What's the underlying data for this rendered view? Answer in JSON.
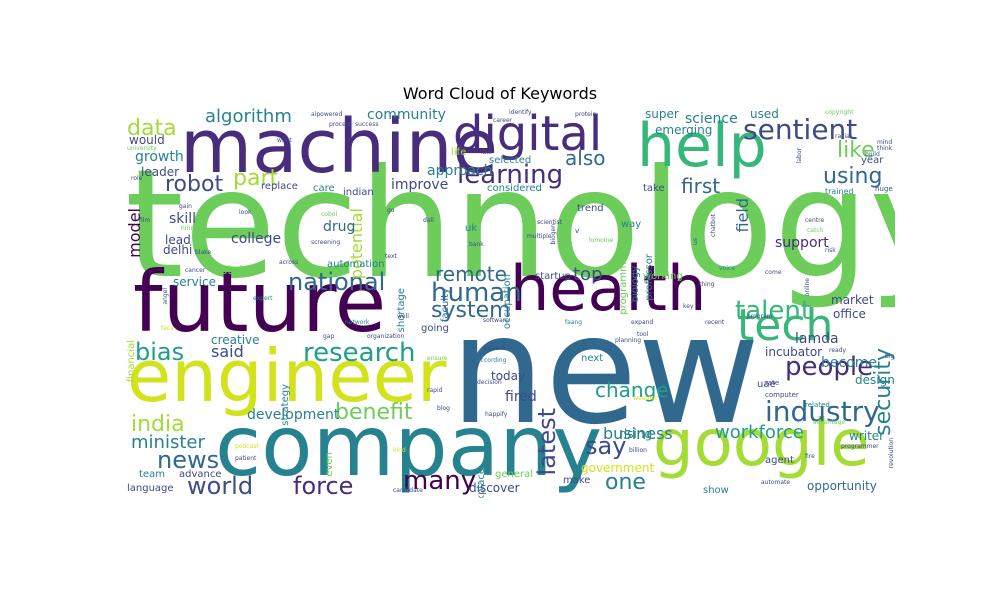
{
  "chart_data": {
    "type": "wordcloud",
    "title": "Word Cloud of Keywords",
    "background": "#ffffff",
    "colormap": "viridis",
    "colors": {
      "yellow": "#d2e21b",
      "lime": "#a5db36",
      "green": "#6ccd5a",
      "emerald": "#35b779",
      "teal": "#1f9e89",
      "blue": "#26828e",
      "steel": "#31688e",
      "indigo": "#3e4a89",
      "violet": "#472d7b",
      "dark": "#440154"
    },
    "words": [
      {
        "text": "technology",
        "weight": 100,
        "color": "#6ccd5a"
      },
      {
        "text": "new",
        "weight": 96,
        "color": "#31688e"
      },
      {
        "text": "company",
        "weight": 72,
        "color": "#26828e"
      },
      {
        "text": "future",
        "weight": 62,
        "color": "#440154"
      },
      {
        "text": "engineer",
        "weight": 57,
        "color": "#d2e21b"
      },
      {
        "text": "machine",
        "weight": 55,
        "color": "#472d7b"
      },
      {
        "text": "health",
        "weight": 52,
        "color": "#440154"
      },
      {
        "text": "google",
        "weight": 52,
        "color": "#a5db36"
      },
      {
        "text": "help",
        "weight": 48,
        "color": "#35b779"
      },
      {
        "text": "digital",
        "weight": 40,
        "color": "#472d7b"
      },
      {
        "text": "tech",
        "weight": 36,
        "color": "#35b779"
      },
      {
        "text": "sentient",
        "weight": 22,
        "color": "#3e4a89"
      },
      {
        "text": "people",
        "weight": 21,
        "color": "#472d7b"
      },
      {
        "text": "industry",
        "weight": 21,
        "color": "#31688e"
      },
      {
        "text": "research",
        "weight": 20,
        "color": "#1f9e89"
      },
      {
        "text": "learning",
        "weight": 20,
        "color": "#472d7b"
      },
      {
        "text": "talent",
        "weight": 20,
        "color": "#35b779"
      },
      {
        "text": "human",
        "weight": 20,
        "color": "#31688e"
      },
      {
        "text": "national",
        "weight": 19,
        "color": "#31688e"
      },
      {
        "text": "world",
        "weight": 19,
        "color": "#3e4a89"
      },
      {
        "text": "force",
        "weight": 19,
        "color": "#472d7b"
      },
      {
        "text": "many",
        "weight": 19,
        "color": "#440154"
      },
      {
        "text": "bias",
        "weight": 19,
        "color": "#1f9e89"
      },
      {
        "text": "news",
        "weight": 19,
        "color": "#31688e"
      },
      {
        "text": "latest",
        "weight": 18,
        "color": "#3e4a89"
      },
      {
        "text": "security",
        "weight": 18,
        "color": "#26828e"
      },
      {
        "text": "data",
        "weight": 18,
        "color": "#a5db36"
      },
      {
        "text": "robot",
        "weight": 17,
        "color": "#3e4a89"
      },
      {
        "text": "part",
        "weight": 17,
        "color": "#a5db36"
      },
      {
        "text": "using",
        "weight": 17,
        "color": "#31688e"
      },
      {
        "text": "like",
        "weight": 17,
        "color": "#6ccd5a"
      },
      {
        "text": "say",
        "weight": 17,
        "color": "#3e4a89"
      },
      {
        "text": "one",
        "weight": 17,
        "color": "#26828e"
      },
      {
        "text": "system",
        "weight": 17,
        "color": "#31688e"
      },
      {
        "text": "india",
        "weight": 17,
        "color": "#a5db36"
      },
      {
        "text": "benefit",
        "weight": 16,
        "color": "#6ccd5a"
      },
      {
        "text": "remote",
        "weight": 16,
        "color": "#31688e"
      },
      {
        "text": "change",
        "weight": 15,
        "color": "#1f9e89"
      },
      {
        "text": "first",
        "weight": 15,
        "color": "#31688e"
      },
      {
        "text": "also",
        "weight": 15,
        "color": "#31688e"
      },
      {
        "text": "workforce",
        "weight": 14,
        "color": "#1f9e89"
      },
      {
        "text": "algorithm",
        "weight": 14,
        "color": "#26828e"
      },
      {
        "text": "minister",
        "weight": 14,
        "color": "#26828e"
      },
      {
        "text": "business",
        "weight": 14,
        "color": "#26828e"
      },
      {
        "text": "top",
        "weight": 14,
        "color": "#3e4a89"
      },
      {
        "text": "field",
        "weight": 13,
        "color": "#31688e"
      },
      {
        "text": "model",
        "weight": 13,
        "color": "#440154"
      },
      {
        "text": "potential",
        "weight": 13,
        "color": "#a5db36"
      },
      {
        "text": "said",
        "weight": 13,
        "color": "#3e4a89"
      },
      {
        "text": "fired",
        "weight": 12,
        "color": "#3e4a89"
      },
      {
        "text": "support",
        "weight": 12,
        "color": "#472d7b"
      },
      {
        "text": "community",
        "weight": 12,
        "color": "#26828e"
      },
      {
        "text": "science",
        "weight": 11,
        "color": "#26828e"
      },
      {
        "text": "skill",
        "weight": 11,
        "color": "#3e4a89"
      },
      {
        "text": "growth",
        "weight": 11,
        "color": "#26828e"
      },
      {
        "text": "lamda",
        "weight": 11,
        "color": "#3e4a89"
      },
      {
        "text": "become",
        "weight": 11,
        "color": "#26828e"
      },
      {
        "text": "improve",
        "weight": 11,
        "color": "#3e4a89"
      },
      {
        "text": "approach",
        "weight": 11,
        "color": "#26828e"
      },
      {
        "text": "development",
        "weight": 11,
        "color": "#26828e"
      },
      {
        "text": "creative",
        "weight": 11,
        "color": "#26828e"
      },
      {
        "text": "college",
        "weight": 11,
        "color": "#3e4a89"
      },
      {
        "text": "drug",
        "weight": 11,
        "color": "#31688e"
      },
      {
        "text": "government",
        "weight": 11,
        "color": "#d2e21b"
      },
      {
        "text": "incubator",
        "weight": 11,
        "color": "#3e4a89"
      },
      {
        "text": "opportunity",
        "weight": 10,
        "color": "#31688e"
      },
      {
        "text": "discover",
        "weight": 10,
        "color": "#3e4a89"
      },
      {
        "text": "emerging",
        "weight": 10,
        "color": "#26828e"
      },
      {
        "text": "used",
        "weight": 10,
        "color": "#26828e"
      },
      {
        "text": "super",
        "weight": 10,
        "color": "#26828e"
      },
      {
        "text": "would",
        "weight": 10,
        "color": "#3e4a89"
      },
      {
        "text": "leader",
        "weight": 10,
        "color": "#3e4a89"
      },
      {
        "text": "service",
        "weight": 10,
        "color": "#26828e"
      },
      {
        "text": "state",
        "weight": 10,
        "color": "#6ccd5a"
      },
      {
        "text": "delhi",
        "weight": 10,
        "color": "#3e4a89"
      },
      {
        "text": "lead",
        "weight": 10,
        "color": "#3e4a89"
      },
      {
        "text": "market",
        "weight": 10,
        "color": "#3e4a89"
      },
      {
        "text": "office",
        "weight": 10,
        "color": "#3e4a89"
      },
      {
        "text": "design",
        "weight": 10,
        "color": "#26828e"
      },
      {
        "text": "writer",
        "weight": 10,
        "color": "#26828e"
      },
      {
        "text": "working",
        "weight": 9,
        "color": "#6ccd5a"
      },
      {
        "text": "today",
        "weight": 10,
        "color": "#3e4a89"
      },
      {
        "text": "rising",
        "weight": 10,
        "color": "#26828e"
      },
      {
        "text": "general",
        "weight": 9,
        "color": "#6ccd5a"
      },
      {
        "text": "make",
        "weight": 9,
        "color": "#3e4a89"
      },
      {
        "text": "show",
        "weight": 9,
        "color": "#26828e"
      },
      {
        "text": "team",
        "weight": 9,
        "color": "#26828e"
      },
      {
        "text": "language",
        "weight": 9,
        "color": "#3e4a89"
      },
      {
        "text": "advance",
        "weight": 9,
        "color": "#3e4a89"
      },
      {
        "text": "agent",
        "weight": 8,
        "color": "#3e4a89"
      },
      {
        "text": "year",
        "weight": 9,
        "color": "#3e4a89"
      },
      {
        "text": "life",
        "weight": 9,
        "color": "#a5db36"
      },
      {
        "text": "selected",
        "weight": 9,
        "color": "#26828e"
      },
      {
        "text": "considered",
        "weight": 9,
        "color": "#26828e"
      },
      {
        "text": "replace",
        "weight": 9,
        "color": "#3e4a89"
      },
      {
        "text": "care",
        "weight": 9,
        "color": "#26828e"
      },
      {
        "text": "automation",
        "weight": 9,
        "color": "#26828e"
      },
      {
        "text": "indian",
        "weight": 9,
        "color": "#3e4a89"
      },
      {
        "text": "startup",
        "weight": 9,
        "color": "#3e4a89"
      },
      {
        "text": "take",
        "weight": 9,
        "color": "#3e4a89"
      },
      {
        "text": "trend",
        "weight": 9,
        "color": "#3e4a89"
      },
      {
        "text": "way",
        "weight": 9,
        "color": "#26828e"
      },
      {
        "text": "uk",
        "weight": 9,
        "color": "#26828e"
      },
      {
        "text": "next",
        "weight": 9,
        "color": "#26828e"
      },
      {
        "text": "uae",
        "weight": 9,
        "color": "#3e4a89"
      },
      {
        "text": "going",
        "weight": 9,
        "color": "#3e4a89"
      },
      {
        "text": "financial",
        "weight": 8,
        "color": "#a5db36"
      },
      {
        "text": "strategy",
        "weight": 8,
        "color": "#26828e"
      },
      {
        "text": "shortage",
        "weight": 8,
        "color": "#26828e"
      },
      {
        "text": "faculty",
        "weight": 8,
        "color": "#31688e"
      },
      {
        "text": "occupation",
        "weight": 8,
        "color": "#26828e"
      },
      {
        "text": "biology",
        "weight": 8,
        "color": "#26828e"
      },
      {
        "text": "professor",
        "weight": 8,
        "color": "#26828e"
      },
      {
        "text": "programme",
        "weight": 8,
        "color": "#6ccd5a"
      },
      {
        "text": "workplace",
        "weight": 8,
        "color": "#26828e"
      },
      {
        "text": "even",
        "weight": 8,
        "color": "#6ccd5a"
      },
      {
        "text": "computer",
        "weight": 6,
        "color": "#3e4a89"
      },
      {
        "text": "rate",
        "weight": 6,
        "color": "#3e4a89"
      },
      {
        "text": "related",
        "weight": 6,
        "color": "#26828e"
      },
      {
        "text": "trained",
        "weight": 7,
        "color": "#26828e"
      },
      {
        "text": "huge",
        "weight": 6,
        "color": "#3e4a89"
      },
      {
        "text": "think",
        "weight": 6,
        "color": "#3e4a89"
      },
      {
        "text": "build",
        "weight": 6,
        "color": "#3e4a89"
      },
      {
        "text": "mind",
        "weight": 6,
        "color": "#3e4a89"
      },
      {
        "text": "racial",
        "weight": 5,
        "color": "#3e4a89"
      },
      {
        "text": "copyright",
        "weight": 5,
        "color": "#6ccd5a"
      },
      {
        "text": "identify",
        "weight": 5,
        "color": "#3e4a89"
      },
      {
        "text": "protein",
        "weight": 5,
        "color": "#3e4a89"
      },
      {
        "text": "career",
        "weight": 5,
        "color": "#3e4a89"
      },
      {
        "text": "aipowered",
        "weight": 5,
        "color": "#3e4a89"
      },
      {
        "text": "process",
        "weight": 5,
        "color": "#3e4a89"
      },
      {
        "text": "success",
        "weight": 5,
        "color": "#3e4a89"
      },
      {
        "text": "want",
        "weight": 5,
        "color": "#3e4a89"
      },
      {
        "text": "law",
        "weight": 5,
        "color": "#3e4a89"
      },
      {
        "text": "university",
        "weight": 5,
        "color": "#6ccd5a"
      },
      {
        "text": "role",
        "weight": 5,
        "color": "#3e4a89"
      },
      {
        "text": "film",
        "weight": 5,
        "color": "#3e4a89"
      },
      {
        "text": "gain",
        "weight": 5,
        "color": "#3e4a89"
      },
      {
        "text": "hiring",
        "weight": 5,
        "color": "#6ccd5a"
      },
      {
        "text": "blake",
        "weight": 5,
        "color": "#3e4a89"
      },
      {
        "text": "cancer",
        "weight": 5,
        "color": "#3e4a89"
      },
      {
        "text": "look",
        "weight": 5,
        "color": "#3e4a89"
      },
      {
        "text": "cobol",
        "weight": 5,
        "color": "#6ccd5a"
      },
      {
        "text": "screening",
        "weight": 5,
        "color": "#3e4a89"
      },
      {
        "text": "gap",
        "weight": 5,
        "color": "#3e4a89"
      },
      {
        "text": "network",
        "weight": 5,
        "color": "#26828e"
      },
      {
        "text": "organization",
        "weight": 5,
        "color": "#3e4a89"
      },
      {
        "text": "well",
        "weight": 5,
        "color": "#3e4a89"
      },
      {
        "text": "expert",
        "weight": 5,
        "color": "#26828e"
      },
      {
        "text": "across",
        "weight": 5,
        "color": "#3e4a89"
      },
      {
        "text": "angel",
        "weight": 5,
        "color": "#3e4a89"
      },
      {
        "text": "face",
        "weight": 5,
        "color": "#d2e21b"
      },
      {
        "text": "text",
        "weight": 5,
        "color": "#3e4a89"
      },
      {
        "text": "go",
        "weight": 5,
        "color": "#3e4a89"
      },
      {
        "text": "dall",
        "weight": 5,
        "color": "#3e4a89"
      },
      {
        "text": "scientist",
        "weight": 5,
        "color": "#3e4a89"
      },
      {
        "text": "biogen",
        "weight": 5,
        "color": "#3e4a89"
      },
      {
        "text": "multiple",
        "weight": 5,
        "color": "#3e4a89"
      },
      {
        "text": "bank",
        "weight": 5,
        "color": "#3e4a89"
      },
      {
        "text": "lomoine",
        "weight": 5,
        "color": "#6ccd5a"
      },
      {
        "text": "chatbot",
        "weight": 5,
        "color": "#3e4a89"
      },
      {
        "text": "centre",
        "weight": 5,
        "color": "#3e4a89"
      },
      {
        "text": "catch",
        "weight": 5,
        "color": "#6ccd5a"
      },
      {
        "text": "risk",
        "weight": 5,
        "color": "#3e4a89"
      },
      {
        "text": "labor",
        "weight": 5,
        "color": "#3e4a89"
      },
      {
        "text": "us",
        "weight": 5,
        "color": "#3e4a89"
      },
      {
        "text": "key",
        "weight": 5,
        "color": "#3e4a89"
      },
      {
        "text": "voice",
        "weight": 5,
        "color": "#26828e"
      },
      {
        "text": "thing",
        "weight": 5,
        "color": "#3e4a89"
      },
      {
        "text": "come",
        "weight": 5,
        "color": "#3e4a89"
      },
      {
        "text": "online",
        "weight": 5,
        "color": "#3e4a89"
      },
      {
        "text": "program",
        "weight": 5,
        "color": "#3e4a89"
      },
      {
        "text": "recent",
        "weight": 5,
        "color": "#3e4a89"
      },
      {
        "text": "faang",
        "weight": 5,
        "color": "#26828e"
      },
      {
        "text": "software",
        "weight": 5,
        "color": "#3e4a89"
      },
      {
        "text": "expand",
        "weight": 5,
        "color": "#3e4a89"
      },
      {
        "text": "tool",
        "weight": 5,
        "color": "#3e4a89"
      },
      {
        "text": "planning",
        "weight": 5,
        "color": "#3e4a89"
      },
      {
        "text": "ready",
        "weight": 5,
        "color": "#3e4a89"
      },
      {
        "text": "big",
        "weight": 5,
        "color": "#3e4a89"
      },
      {
        "text": "explore",
        "weight": 5,
        "color": "#3e4a89"
      },
      {
        "text": "according",
        "weight": 5,
        "color": "#26828e"
      },
      {
        "text": "decision",
        "weight": 5,
        "color": "#3e4a89"
      },
      {
        "text": "ensure",
        "weight": 5,
        "color": "#6ccd5a"
      },
      {
        "text": "rapid",
        "weight": 5,
        "color": "#3e4a89"
      },
      {
        "text": "blog",
        "weight": 5,
        "color": "#3e4a89"
      },
      {
        "text": "happify",
        "weight": 5,
        "color": "#3e4a89"
      },
      {
        "text": "weather",
        "weight": 5,
        "color": "#d2e21b"
      },
      {
        "text": "advantage",
        "weight": 5,
        "color": "#6ccd5a"
      },
      {
        "text": "programmer",
        "weight": 5,
        "color": "#3e4a89"
      },
      {
        "text": "revolution",
        "weight": 5,
        "color": "#3e4a89"
      },
      {
        "text": "podcast",
        "weight": 5,
        "color": "#d2e21b"
      },
      {
        "text": "patient",
        "weight": 5,
        "color": "#3e4a89"
      },
      {
        "text": "kind",
        "weight": 5,
        "color": "#d2e21b"
      },
      {
        "text": "candidate",
        "weight": 5,
        "color": "#3e4a89"
      },
      {
        "text": "billion",
        "weight": 5,
        "color": "#3e4a89"
      },
      {
        "text": "automate",
        "weight": 5,
        "color": "#3e4a89"
      },
      {
        "text": "fire",
        "weight": 5,
        "color": "#3e4a89"
      },
      {
        "text": "v",
        "weight": 5,
        "color": "#3e4a89"
      }
    ]
  }
}
